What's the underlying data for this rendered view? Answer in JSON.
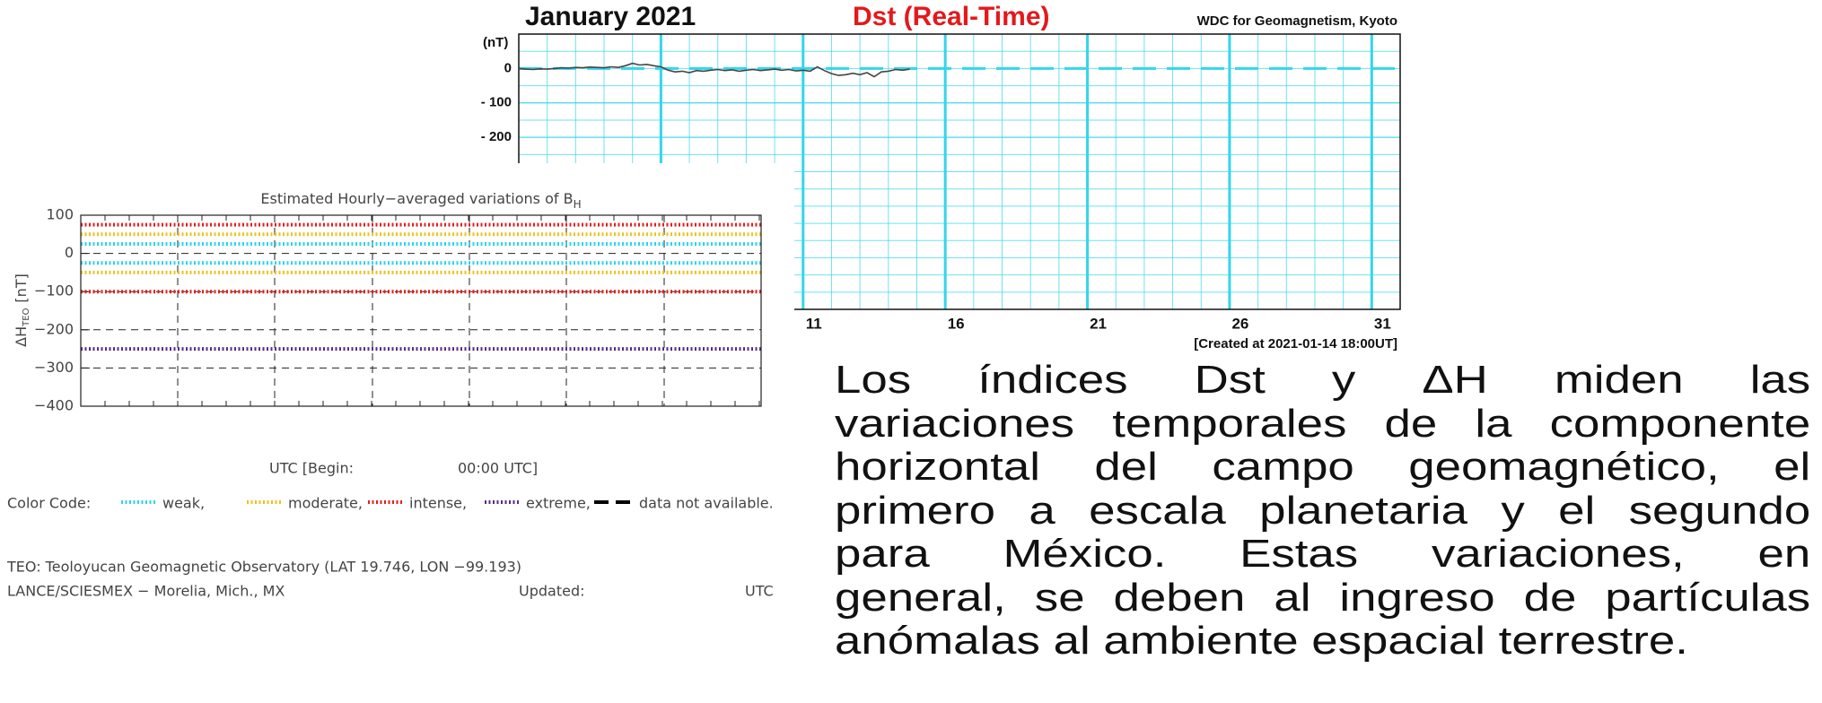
{
  "chart_data": [
    {
      "type": "line",
      "title": "January 2021",
      "subtitle": "Dst (Real-Time)",
      "source": "WDC for Geomagnetism, Kyoto",
      "ylabel": "(nT)",
      "annotation": "[Created at 2021-01-14 18:00UT]",
      "x": [
        1,
        1.25,
        1.5,
        1.75,
        2,
        2.25,
        2.5,
        2.75,
        3,
        3.25,
        3.5,
        3.75,
        4,
        4.25,
        4.5,
        4.75,
        5,
        5.25,
        5.5,
        5.75,
        6,
        6.25,
        6.5,
        6.75,
        7,
        7.25,
        7.5,
        7.75,
        8,
        8.25,
        8.5,
        8.75,
        9,
        9.25,
        9.5,
        9.75,
        10,
        10.25,
        10.5,
        10.75,
        11,
        11.25,
        11.5,
        11.75,
        12,
        12.25,
        12.5,
        12.75,
        13,
        13.25,
        13.5,
        13.75,
        14,
        14.25,
        14.5,
        14.75
      ],
      "values": [
        0,
        -2,
        -3,
        -1,
        -2,
        0,
        2,
        1,
        3,
        2,
        4,
        3,
        2,
        5,
        3,
        8,
        15,
        10,
        12,
        8,
        5,
        -5,
        -10,
        -8,
        -12,
        -6,
        -8,
        -5,
        -3,
        -6,
        -4,
        -8,
        -5,
        -3,
        -6,
        -4,
        -2,
        -5,
        -3,
        -7,
        -5,
        -8,
        5,
        -6,
        -15,
        -20,
        -18,
        -14,
        -18,
        -12,
        -24,
        -10,
        -8,
        -3,
        -5,
        -2
      ],
      "color": "#444444",
      "xlim": [
        1,
        32
      ],
      "xticks": [
        11,
        16,
        21,
        26,
        31
      ],
      "ylim": [
        -700,
        100
      ],
      "yticks": [
        0,
        {
          "value": -100,
          "label": "- 100"
        },
        {
          "value": -200,
          "label": "- 200"
        }
      ],
      "grid": true,
      "grid_color": "#33d6ea"
    },
    {
      "type": "hline",
      "title": "Estimated Hourly−averaged variations of B",
      "title_subscript": "H",
      "ylabel": "ΔH",
      "ylabel_subscript": "TEO",
      "ylabel_unit": "[nT]",
      "ylim": [
        -400,
        100
      ],
      "yticks": [
        100,
        0,
        {
          "value": -100,
          "label": "−100"
        },
        {
          "value": -200,
          "label": "−200"
        },
        {
          "value": -300,
          "label": "−300"
        },
        {
          "value": -400,
          "label": "−400"
        }
      ],
      "grid": true,
      "series": [
        {
          "name": "weak,",
          "color": "#2fd3e8",
          "values": [
            25,
            -25
          ]
        },
        {
          "name": "moderate,",
          "color": "#efc21c",
          "values": [
            50,
            -50
          ]
        },
        {
          "name": "intense,",
          "color": "#e0201c",
          "values": [
            75,
            -100
          ]
        },
        {
          "name": "extreme,",
          "color": "#5a2a8a",
          "values": [
            -250
          ]
        }
      ],
      "legend_title": "Color Code:",
      "missing_label": "data not available.",
      "xlabel": "UTC [Begin:",
      "xlabel_end": "00:00 UTC]",
      "notes": [
        "TEO: Teoloyucan Geomagnetic Observatory (LAT  19.746, LON −99.193)",
        "LANCE/SCIESMEX − Morelia, Mich., MX"
      ],
      "updated_label": "Updated:",
      "updated_unit": "UTC"
    }
  ],
  "paragraph_lines": [
    "Los índices Dst y ΔH miden las",
    "variaciones temporales de la componente",
    "horizontal del campo geomagnético, el",
    "primero a escala planetaria y el segundo",
    "para México. Estas variaciones, en",
    "general, se deben al ingreso de partículas",
    "anómalas al ambiente espacial terrestre."
  ]
}
